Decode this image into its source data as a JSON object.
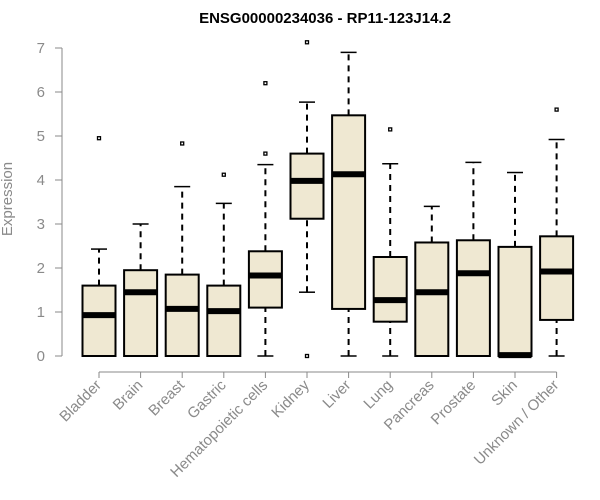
{
  "chart_data": {
    "type": "boxplot",
    "title": "ENSG00000234036 - RP11-123J14.2",
    "xlabel": "",
    "ylabel": "Expression",
    "ylim": [
      0,
      7
    ],
    "yticks": [
      0,
      1,
      2,
      3,
      4,
      5,
      6,
      7
    ],
    "box_fill": "#efe8d2",
    "box_stroke": "#000000",
    "axis_color": "#8a8a8a",
    "categories": [
      "Bladder",
      "Brain",
      "Breast",
      "Gastric",
      "Hematopoietic cells",
      "Kidney",
      "Liver",
      "Lung",
      "Pancreas",
      "Prostate",
      "Skin",
      "Unknown / Other"
    ],
    "boxes": [
      {
        "category": "Bladder",
        "min": 0,
        "q1": 0,
        "median": 0.93,
        "q3": 1.6,
        "max": 2.43,
        "outliers": [
          4.95
        ]
      },
      {
        "category": "Brain",
        "min": 0,
        "q1": 0,
        "median": 1.45,
        "q3": 1.95,
        "max": 3.0,
        "outliers": []
      },
      {
        "category": "Breast",
        "min": 0,
        "q1": 0,
        "median": 1.07,
        "q3": 1.85,
        "max": 3.85,
        "outliers": [
          4.83
        ]
      },
      {
        "category": "Gastric",
        "min": 0,
        "q1": 0,
        "median": 1.02,
        "q3": 1.6,
        "max": 3.47,
        "outliers": [
          4.12
        ]
      },
      {
        "category": "Hematopoietic cells",
        "min": 0,
        "q1": 1.1,
        "median": 1.83,
        "q3": 2.38,
        "max": 4.35,
        "outliers": [
          4.6,
          6.2
        ]
      },
      {
        "category": "Kidney",
        "min": 1.45,
        "q1": 3.12,
        "median": 3.98,
        "q3": 4.6,
        "max": 5.77,
        "outliers": [
          7.13,
          0
        ]
      },
      {
        "category": "Liver",
        "min": 0,
        "q1": 1.07,
        "median": 4.13,
        "q3": 5.47,
        "max": 6.9,
        "outliers": []
      },
      {
        "category": "Lung",
        "min": 0,
        "q1": 0.78,
        "median": 1.27,
        "q3": 2.25,
        "max": 4.37,
        "outliers": [
          5.15
        ]
      },
      {
        "category": "Pancreas",
        "min": 0,
        "q1": 0,
        "median": 1.45,
        "q3": 2.58,
        "max": 3.4,
        "outliers": []
      },
      {
        "category": "Prostate",
        "min": 0,
        "q1": 0,
        "median": 1.88,
        "q3": 2.63,
        "max": 4.4,
        "outliers": []
      },
      {
        "category": "Skin",
        "min": 0,
        "q1": 0,
        "median": 0.02,
        "q3": 2.48,
        "max": 4.17,
        "outliers": []
      },
      {
        "category": "Unknown / Other",
        "min": 0,
        "q1": 0.82,
        "median": 1.92,
        "q3": 2.72,
        "max": 4.92,
        "outliers": [
          5.6
        ]
      }
    ]
  }
}
